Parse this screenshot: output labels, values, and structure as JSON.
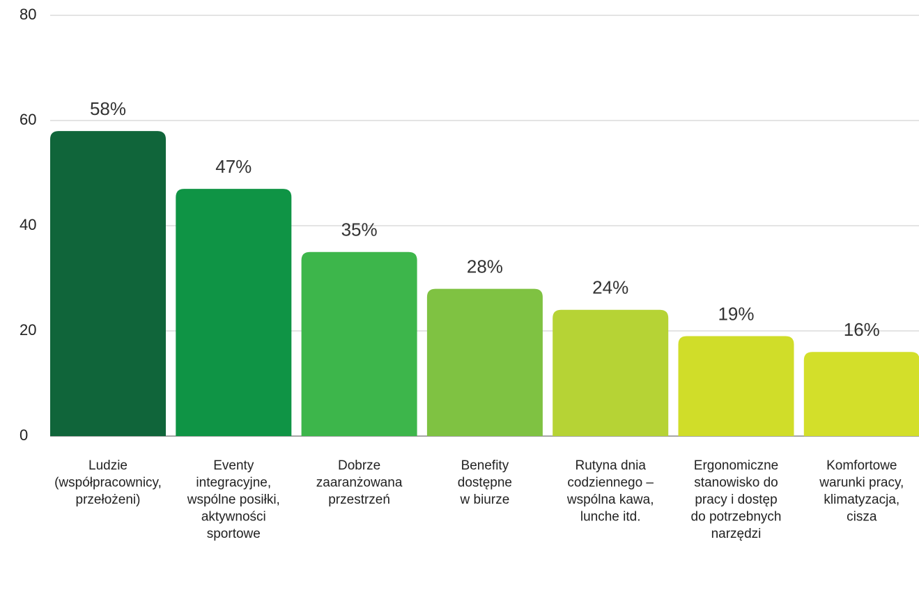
{
  "chart_data": {
    "type": "bar",
    "categories": [
      [
        "Ludzie",
        "(współpracownicy,",
        "przełożeni)"
      ],
      [
        "Eventy",
        "integracyjne,",
        "wspólne posiłki,",
        "aktywności",
        "sportowe"
      ],
      [
        "Dobrze",
        "zaaranżowana",
        "przestrzeń"
      ],
      [
        "Benefity",
        "dostępne",
        "w biurze"
      ],
      [
        "Rutyna dnia",
        "codziennego –",
        "wspólna kawa,",
        "lunche itd."
      ],
      [
        "Ergonomiczne",
        "stanowisko do",
        "pracy i dostęp",
        "do potrzebnych",
        "narzędzi"
      ],
      [
        "Komfortowe",
        "warunki pracy,",
        "klimatyzacja,",
        "cisza"
      ]
    ],
    "values": [
      58,
      47,
      35,
      28,
      24,
      19,
      16
    ],
    "value_labels": [
      "58%",
      "47%",
      "35%",
      "28%",
      "24%",
      "19%",
      "16%"
    ],
    "colors": [
      "#10653a",
      "#0f9445",
      "#3db64b",
      "#7fc242",
      "#b6d335",
      "#d0dd29",
      "#d3df2a"
    ],
    "ylim": [
      0,
      80
    ],
    "yticks": [
      0,
      20,
      40,
      60,
      80
    ],
    "grid": true
  }
}
